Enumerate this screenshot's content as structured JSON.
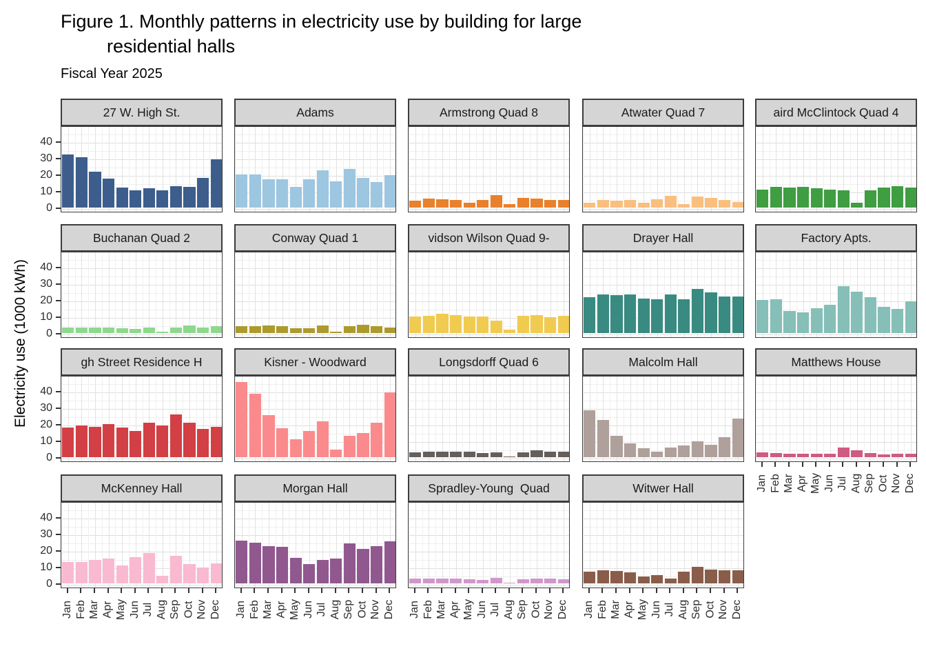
{
  "title_line1": "Figure 1. Monthly patterns in electricity use by building for large",
  "title_line2": "residential halls",
  "subtitle": "Fiscal Year 2025",
  "y_axis": {
    "label": "Electricity use (1000 kWh)",
    "ticks": [
      "40",
      "30",
      "20",
      "10",
      "0"
    ],
    "tick_values": [
      40,
      30,
      20,
      10,
      0
    ]
  },
  "months": [
    "Jan",
    "Feb",
    "Mar",
    "Apr",
    "May",
    "Jun",
    "Jul",
    "Aug",
    "Sep",
    "Oct",
    "Nov",
    "Dec"
  ],
  "chart_data": {
    "type": "bar",
    "title": "Figure 1. Monthly patterns in electricity use by building for large residential halls",
    "subtitle": "Fiscal Year 2025",
    "xlabel": "",
    "ylabel": "Electricity use (1000 kWh)",
    "ylim": [
      0,
      49
    ],
    "grid": "on",
    "layout": "facet grid, 5 columns x 4 rows, shared axes",
    "categories": [
      "Jan",
      "Feb",
      "Mar",
      "Apr",
      "May",
      "Jun",
      "Jul",
      "Aug",
      "Sep",
      "Oct",
      "Nov",
      "Dec"
    ],
    "facets": [
      {
        "label": "27 W. High St.",
        "color": "#3d5e8c",
        "values": [
          32,
          30.5,
          21.5,
          17.5,
          12,
          10.5,
          11.5,
          10.5,
          13,
          12.5,
          18,
          29
        ]
      },
      {
        "label": "Adams",
        "color": "#9dc6e0",
        "values": [
          20,
          20,
          17,
          17,
          12.5,
          17,
          22.5,
          16,
          23.5,
          18,
          15.5,
          19.5
        ]
      },
      {
        "label": "Armstrong Quad 8",
        "color": "#e8802c",
        "values": [
          4,
          5.5,
          5,
          4.5,
          3,
          4.5,
          7.5,
          2,
          6,
          5.5,
          4.5,
          4.5
        ]
      },
      {
        "label": "Atwater Quad 7",
        "color": "#fabe7e",
        "values": [
          3,
          4.5,
          4,
          4.5,
          3,
          5,
          7,
          2,
          6.5,
          6,
          4.5,
          3.5
        ]
      },
      {
        "label": "aird McClintock Quad 4",
        "color": "#3f9d42",
        "values": [
          11,
          12.5,
          12,
          12.5,
          11.5,
          11,
          10.5,
          3,
          10.5,
          12,
          13,
          12
        ]
      },
      {
        "label": "Buchanan Quad 2",
        "color": "#8ed88e",
        "values": [
          3.5,
          3.5,
          3.5,
          3.5,
          3,
          2.5,
          3.5,
          0.7,
          3.5,
          4.5,
          3.5,
          4
        ]
      },
      {
        "label": "Conway Quad 1",
        "color": "#ad9a2d",
        "values": [
          4,
          4,
          4.5,
          4,
          3,
          3,
          4.5,
          1,
          4,
          5,
          4,
          3.5
        ]
      },
      {
        "label": "vidson Wilson Quad 9-",
        "color": "#f0cb50",
        "values": [
          10,
          10.5,
          11.5,
          11,
          10,
          10,
          7.5,
          2,
          10.5,
          11,
          9.5,
          10.5
        ]
      },
      {
        "label": "Drayer Hall",
        "color": "#398b81",
        "values": [
          21.5,
          23.5,
          23,
          23.5,
          21,
          20.5,
          23.5,
          20.5,
          26.5,
          24.5,
          22,
          22
        ]
      },
      {
        "label": "Factory Apts.",
        "color": "#85bfb7",
        "values": [
          20,
          20.5,
          13.5,
          12.5,
          15,
          17,
          28.5,
          25,
          21.5,
          16,
          14.5,
          19
        ]
      },
      {
        "label": "gh Street Residence H",
        "color": "#d23f45",
        "values": [
          18,
          19,
          18.5,
          20,
          18,
          16,
          21,
          19,
          26,
          21,
          17,
          18.5
        ]
      },
      {
        "label": "Kisner - Woodward",
        "color": "#fb8a8c",
        "values": [
          45.5,
          38.5,
          25.5,
          17.5,
          11,
          16,
          21.5,
          4.5,
          13,
          14.5,
          21,
          39
        ]
      },
      {
        "label": "Longsdorff Quad 6",
        "color": "#655f5b",
        "values": [
          3,
          3.5,
          3.5,
          3.5,
          3.5,
          2.5,
          3,
          0.5,
          3,
          4,
          3.5,
          3.5
        ]
      },
      {
        "label": "Malcolm Hall",
        "color": "#afa09b",
        "values": [
          28.5,
          22.5,
          13,
          8.5,
          5.5,
          3.5,
          6,
          7,
          9.5,
          7.5,
          12,
          23.5
        ]
      },
      {
        "label": "Matthews House",
        "color": "#ce5b81",
        "values": [
          3,
          2.5,
          2,
          2,
          2,
          2,
          6,
          4,
          2.5,
          1.5,
          2,
          2
        ]
      },
      {
        "label": "McKenney Hall",
        "color": "#f9b9d0",
        "values": [
          13,
          13,
          14,
          15,
          11,
          16,
          18.5,
          4.5,
          16.5,
          11.5,
          9.5,
          12
        ]
      },
      {
        "label": "Morgan Hall",
        "color": "#90588f",
        "values": [
          26,
          24.5,
          22.5,
          22,
          15.5,
          11.5,
          14,
          15,
          24,
          21,
          22.5,
          25.5
        ]
      },
      {
        "label": "Spradley-Young  Quad",
        "color": "#d097cb",
        "values": [
          3,
          3,
          3,
          3,
          2.5,
          2,
          3.5,
          0.5,
          2.5,
          3,
          3,
          2.5
        ]
      },
      {
        "label": "Witwer Hall",
        "color": "#8a5d4a",
        "values": [
          7,
          8,
          7.5,
          6.5,
          4,
          5,
          3,
          7,
          10,
          8.5,
          8,
          8
        ]
      }
    ]
  }
}
